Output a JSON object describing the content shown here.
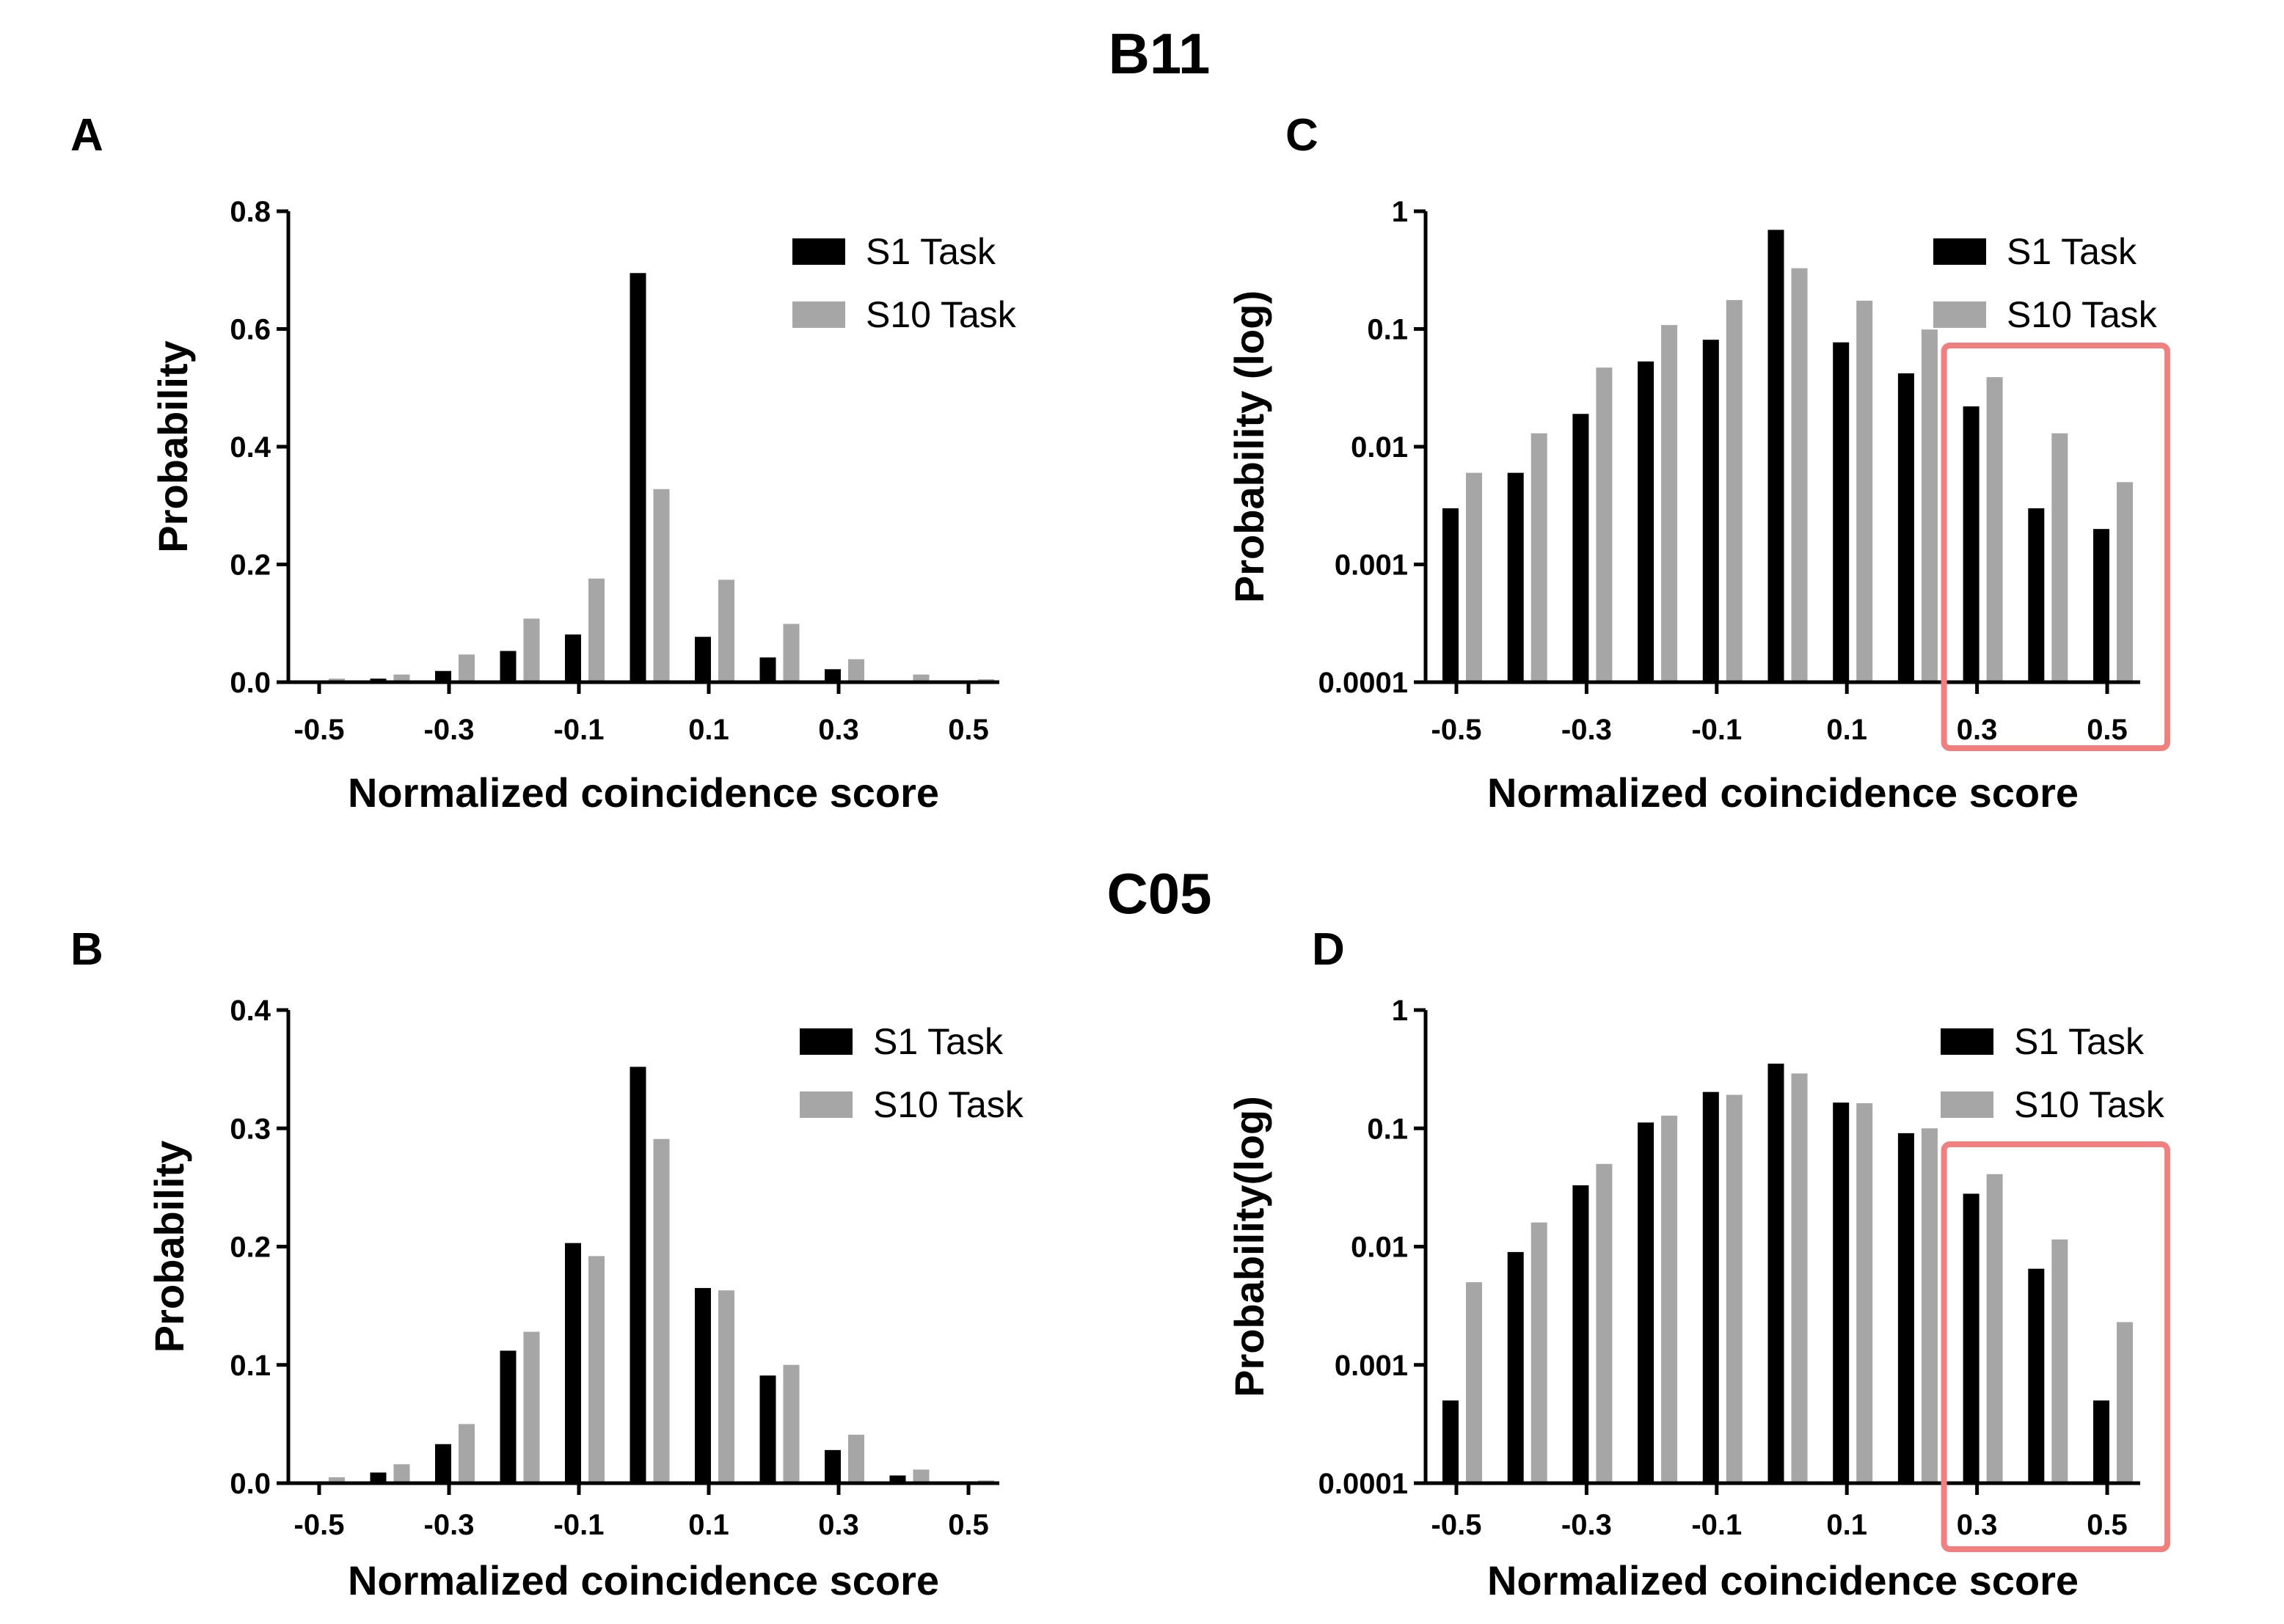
{
  "group_titles": [
    "B11",
    "C05"
  ],
  "chart_data": [
    {
      "panel": "A",
      "type": "bar",
      "scale": "linear",
      "group": "B11",
      "xlabel": "Normalized coincidence score",
      "ylabel": "Probability",
      "x": [
        -0.5,
        -0.4,
        -0.3,
        -0.2,
        -0.1,
        0.0,
        0.1,
        0.2,
        0.3,
        0.4,
        0.5
      ],
      "xticks": [
        "-0.5",
        "-0.3",
        "-0.1",
        "0.1",
        "0.3",
        "0.5"
      ],
      "xtick_values": [
        -0.5,
        -0.3,
        -0.1,
        0.1,
        0.3,
        0.5
      ],
      "ylim": [
        0,
        0.8
      ],
      "yticks": [
        "0.0",
        "0.2",
        "0.4",
        "0.6",
        "0.8"
      ],
      "ytick_values": [
        0,
        0.2,
        0.4,
        0.6,
        0.8
      ],
      "series": [
        {
          "name": "S1 Task",
          "color": "#000000",
          "values": [
            0.003,
            0.006,
            0.019,
            0.053,
            0.081,
            0.695,
            0.077,
            0.042,
            0.022,
            0.003,
            0.002
          ]
        },
        {
          "name": "S10 Task",
          "color": "#a6a6a6",
          "values": [
            0.006,
            0.013,
            0.047,
            0.108,
            0.176,
            0.328,
            0.174,
            0.099,
            0.039,
            0.013,
            0.005
          ]
        }
      ],
      "highlight": null
    },
    {
      "panel": "C",
      "type": "bar",
      "scale": "log",
      "group": "B11",
      "xlabel": "Normalized coincidence score",
      "ylabel": "Probability (log)",
      "x": [
        -0.5,
        -0.4,
        -0.3,
        -0.2,
        -0.1,
        0.0,
        0.1,
        0.2,
        0.3,
        0.4,
        0.5
      ],
      "xticks": [
        "-0.5",
        "-0.3",
        "-0.1",
        "0.1",
        "0.3",
        "0.5"
      ],
      "xtick_values": [
        -0.5,
        -0.3,
        -0.1,
        0.1,
        0.3,
        0.5
      ],
      "ylim": [
        0.0001,
        1
      ],
      "yticks": [
        "0.0001",
        "0.001",
        "0.01",
        "0.1",
        "1"
      ],
      "ytick_values": [
        0.0001,
        0.001,
        0.01,
        0.1,
        1
      ],
      "series": [
        {
          "name": "S1 Task",
          "color": "#000000",
          "values": [
            0.003,
            0.006,
            0.019,
            0.053,
            0.081,
            0.695,
            0.077,
            0.042,
            0.022,
            0.003,
            0.002
          ]
        },
        {
          "name": "S10 Task",
          "color": "#a6a6a6",
          "values": [
            0.006,
            0.013,
            0.047,
            0.108,
            0.176,
            0.328,
            0.174,
            0.099,
            0.039,
            0.013,
            0.005
          ]
        }
      ],
      "highlight": {
        "x_from": 0.3,
        "x_to": 0.5,
        "color": "#f08080"
      }
    },
    {
      "panel": "B",
      "type": "bar",
      "scale": "linear",
      "group": "C05",
      "xlabel": "Normalized coincidence score",
      "ylabel": "Probability",
      "x": [
        -0.5,
        -0.4,
        -0.3,
        -0.2,
        -0.1,
        0.0,
        0.1,
        0.2,
        0.3,
        0.4,
        0.5
      ],
      "xticks": [
        "-0.5",
        "-0.3",
        "-0.1",
        "0.1",
        "0.3",
        "0.5"
      ],
      "xtick_values": [
        -0.5,
        -0.3,
        -0.1,
        0.1,
        0.3,
        0.5
      ],
      "ylim": [
        0,
        0.4
      ],
      "yticks": [
        "0.0",
        "0.1",
        "0.2",
        "0.3",
        "0.4"
      ],
      "ytick_values": [
        0,
        0.1,
        0.2,
        0.3,
        0.4
      ],
      "series": [
        {
          "name": "S1 Task",
          "color": "#000000",
          "values": [
            0.0005,
            0.009,
            0.033,
            0.112,
            0.203,
            0.352,
            0.165,
            0.091,
            0.028,
            0.0065,
            0.0005
          ]
        },
        {
          "name": "S10 Task",
          "color": "#a6a6a6",
          "values": [
            0.005,
            0.016,
            0.05,
            0.128,
            0.192,
            0.291,
            0.163,
            0.1,
            0.041,
            0.0115,
            0.0023
          ]
        }
      ],
      "highlight": null
    },
    {
      "panel": "D",
      "type": "bar",
      "scale": "log",
      "group": "C05",
      "xlabel": "Normalized coincidence score",
      "ylabel": "Probability(log)",
      "x": [
        -0.5,
        -0.4,
        -0.3,
        -0.2,
        -0.1,
        0.0,
        0.1,
        0.2,
        0.3,
        0.4,
        0.5
      ],
      "xticks": [
        "-0.5",
        "-0.3",
        "-0.1",
        "0.1",
        "0.3",
        "0.5"
      ],
      "xtick_values": [
        -0.5,
        -0.3,
        -0.1,
        0.1,
        0.3,
        0.5
      ],
      "ylim": [
        0.0001,
        1
      ],
      "yticks": [
        "0.0001",
        "0.001",
        "0.01",
        "0.1",
        "1"
      ],
      "ytick_values": [
        0.0001,
        0.001,
        0.01,
        0.1,
        1
      ],
      "series": [
        {
          "name": "S1 Task",
          "color": "#000000",
          "values": [
            0.0005,
            0.009,
            0.033,
            0.112,
            0.203,
            0.352,
            0.165,
            0.091,
            0.028,
            0.0065,
            0.0005
          ]
        },
        {
          "name": "S10 Task",
          "color": "#a6a6a6",
          "values": [
            0.005,
            0.016,
            0.05,
            0.128,
            0.192,
            0.291,
            0.163,
            0.1,
            0.041,
            0.0115,
            0.0023
          ]
        }
      ],
      "highlight": {
        "x_from": 0.3,
        "x_to": 0.5,
        "color": "#f08080"
      }
    }
  ]
}
